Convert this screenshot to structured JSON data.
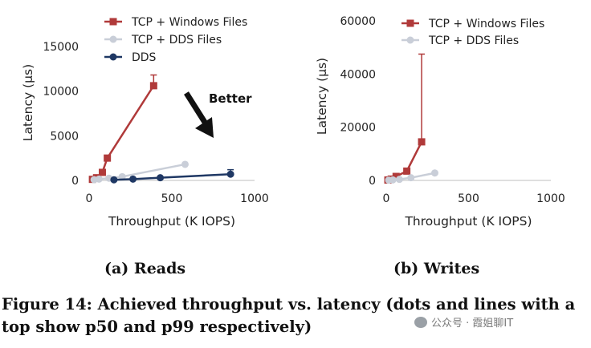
{
  "chart_data": [
    {
      "id": "a",
      "type": "line",
      "subcaption": "(a) Reads",
      "xlabel": "Throughput (K IOPS)",
      "ylabel": "Latency (µs)",
      "xlim": [
        0,
        1000
      ],
      "ylim": [
        0,
        17500
      ],
      "xticks": [
        "0",
        "500",
        "1000"
      ],
      "xtick_values": [
        0,
        500,
        1000
      ],
      "yticks": [
        "0",
        "5000",
        "10000",
        "15000"
      ],
      "ytick_values": [
        0,
        5000,
        10000,
        15000
      ],
      "annotation": "Better",
      "legend_position": "top-right",
      "series": [
        {
          "name": "TCP + Windows Files",
          "color": "#b03a3a",
          "marker": "square",
          "x": [
            20,
            45,
            80,
            110,
            390
          ],
          "y": [
            120,
            300,
            900,
            2500,
            10600
          ],
          "p99": [
            {
              "x": 390,
              "y": 11800
            }
          ]
        },
        {
          "name": "TCP + DDS Files",
          "color": "#c9ced8",
          "marker": "circle",
          "x": [
            30,
            60,
            120,
            200,
            580
          ],
          "y": [
            80,
            150,
            250,
            420,
            1800
          ],
          "p99": []
        },
        {
          "name": "DDS",
          "color": "#1f3864",
          "marker": "circle",
          "x": [
            150,
            265,
            430,
            855
          ],
          "y": [
            70,
            150,
            300,
            700
          ],
          "p99": [
            {
              "x": 855,
              "y": 1200
            }
          ]
        }
      ]
    },
    {
      "id": "b",
      "type": "line",
      "subcaption": "(b) Writes",
      "xlabel": "Throughput (K IOPS)",
      "ylabel": "Latency (µs)",
      "xlim": [
        0,
        1000
      ],
      "ylim": [
        0,
        60000
      ],
      "xticks": [
        "0",
        "500",
        "1000"
      ],
      "xtick_values": [
        0,
        500,
        1000
      ],
      "yticks": [
        "0",
        "20000",
        "40000",
        "60000"
      ],
      "ytick_values": [
        0,
        20000,
        40000,
        60000
      ],
      "legend_position": "top-right",
      "series": [
        {
          "name": "TCP + Windows Files",
          "color": "#b03a3a",
          "marker": "square",
          "x": [
            10,
            30,
            60,
            125,
            215
          ],
          "y": [
            150,
            500,
            1500,
            3500,
            14500
          ],
          "p99": [
            {
              "x": 215,
              "y": 47500
            }
          ]
        },
        {
          "name": "TCP + DDS Files",
          "color": "#c9ced8",
          "marker": "circle",
          "x": [
            15,
            40,
            80,
            150,
            295
          ],
          "y": [
            100,
            200,
            400,
            1000,
            2800
          ],
          "p99": []
        }
      ]
    }
  ],
  "caption": "Figure 14: Achieved throughput vs. latency (dots and lines with a top show p50 and p99 respectively)",
  "watermark": "公众号 · 霞姐聊IT"
}
